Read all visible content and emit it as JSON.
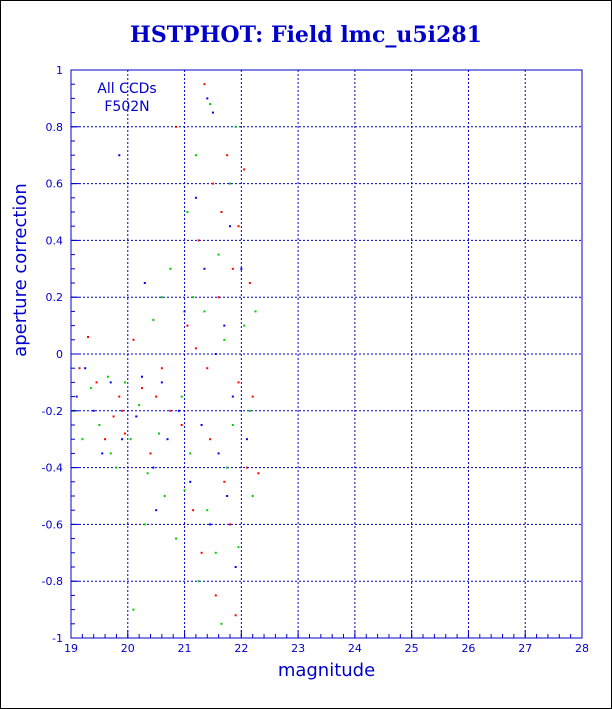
{
  "chart_data": {
    "type": "scatter",
    "title": "HSTPHOT: Field lmc_u5i281",
    "xlabel": "magnitude",
    "ylabel": "aperture correction",
    "xlim": [
      19,
      28
    ],
    "ylim": [
      -1,
      1
    ],
    "x_ticks": [
      "19",
      "20",
      "21",
      "22",
      "23",
      "24",
      "25",
      "26",
      "27",
      "28"
    ],
    "y_ticks": [
      "-1",
      "-0.8",
      "-0.6",
      "-0.4",
      "-0.2",
      "0",
      "0.2",
      "0.4",
      "0.6",
      "0.8",
      "1"
    ],
    "grid": true,
    "annotations": [
      "All CCDs",
      "F502N"
    ],
    "colors": {
      "axes": "#0000cc",
      "grid": "#0000cc",
      "title": "#0000cc"
    },
    "series": [
      {
        "color": "#ff0000",
        "points": [
          [
            19.15,
            -0.05
          ],
          [
            19.3,
            0.06
          ],
          [
            19.45,
            -0.1
          ],
          [
            19.6,
            -0.3
          ],
          [
            19.75,
            -0.22
          ],
          [
            19.85,
            -0.15
          ],
          [
            19.95,
            -0.28
          ],
          [
            20.1,
            0.05
          ],
          [
            20.25,
            -0.12
          ],
          [
            20.4,
            -0.35
          ],
          [
            20.6,
            -0.05
          ],
          [
            20.75,
            -0.2
          ],
          [
            20.85,
            0.8
          ],
          [
            20.95,
            -0.25
          ],
          [
            21.05,
            0.1
          ],
          [
            21.15,
            -0.55
          ],
          [
            21.25,
            0.4
          ],
          [
            21.3,
            -0.7
          ],
          [
            21.35,
            0.95
          ],
          [
            21.45,
            -0.3
          ],
          [
            21.5,
            0.6
          ],
          [
            21.55,
            -0.85
          ],
          [
            21.6,
            0.2
          ],
          [
            21.7,
            -0.45
          ],
          [
            21.75,
            0.7
          ],
          [
            21.8,
            -0.6
          ],
          [
            21.85,
            0.3
          ],
          [
            21.9,
            -0.92
          ],
          [
            21.95,
            -0.1
          ],
          [
            22.05,
            0.65
          ],
          [
            22.1,
            -0.4
          ],
          [
            22.15,
            0.25
          ],
          [
            22.2,
            -0.15
          ],
          [
            22.3,
            -0.42
          ],
          [
            21.4,
            -0.05
          ],
          [
            21.65,
            0.5
          ],
          [
            20.5,
            -0.15
          ],
          [
            19.9,
            -0.2
          ],
          [
            21.2,
            0.02
          ],
          [
            21.95,
            0.45
          ]
        ]
      },
      {
        "color": "#00cc00",
        "points": [
          [
            19.05,
            -0.2
          ],
          [
            19.2,
            -0.3
          ],
          [
            19.35,
            -0.12
          ],
          [
            19.5,
            -0.25
          ],
          [
            19.65,
            -0.08
          ],
          [
            19.8,
            -0.4
          ],
          [
            19.95,
            -0.1
          ],
          [
            20.05,
            -0.3
          ],
          [
            20.2,
            -0.18
          ],
          [
            20.35,
            -0.42
          ],
          [
            20.45,
            0.12
          ],
          [
            20.55,
            -0.28
          ],
          [
            20.65,
            -0.5
          ],
          [
            20.75,
            0.3
          ],
          [
            20.85,
            -0.65
          ],
          [
            20.95,
            -0.15
          ],
          [
            21.05,
            0.5
          ],
          [
            21.1,
            -0.35
          ],
          [
            21.2,
            0.7
          ],
          [
            21.25,
            -0.8
          ],
          [
            21.35,
            0.15
          ],
          [
            21.4,
            -0.55
          ],
          [
            21.45,
            0.88
          ],
          [
            21.55,
            -0.7
          ],
          [
            21.6,
            0.35
          ],
          [
            21.65,
            -0.95
          ],
          [
            21.7,
            0.05
          ],
          [
            21.75,
            -0.4
          ],
          [
            21.8,
            0.6
          ],
          [
            21.85,
            -0.25
          ],
          [
            21.9,
            0.8
          ],
          [
            21.95,
            -0.68
          ],
          [
            22.05,
            0.1
          ],
          [
            22.15,
            -0.2
          ],
          [
            22.25,
            0.15
          ],
          [
            22.2,
            -0.5
          ],
          [
            20.1,
            -0.9
          ],
          [
            20.3,
            -0.6
          ],
          [
            19.7,
            -0.35
          ],
          [
            21.0,
            -0.48
          ],
          [
            20.6,
            0.2
          ],
          [
            21.15,
            0.2
          ]
        ]
      },
      {
        "color": "#0000ff",
        "points": [
          [
            19.1,
            -0.15
          ],
          [
            19.25,
            -0.05
          ],
          [
            19.4,
            -0.2
          ],
          [
            19.55,
            -0.35
          ],
          [
            19.7,
            -0.1
          ],
          [
            19.85,
            0.7
          ],
          [
            19.9,
            -0.3
          ],
          [
            20.15,
            -0.22
          ],
          [
            20.3,
            0.25
          ],
          [
            20.45,
            -0.4
          ],
          [
            20.6,
            -0.1
          ],
          [
            20.7,
            -0.3
          ],
          [
            20.9,
            -0.2
          ],
          [
            21.0,
            0.15
          ],
          [
            21.1,
            -0.45
          ],
          [
            21.2,
            0.55
          ],
          [
            21.3,
            -0.25
          ],
          [
            21.4,
            0.9
          ],
          [
            21.45,
            -0.6
          ],
          [
            21.5,
            0.85
          ],
          [
            21.6,
            -0.35
          ],
          [
            21.7,
            0.1
          ],
          [
            21.75,
            -0.5
          ],
          [
            21.8,
            0.45
          ],
          [
            21.85,
            -0.15
          ],
          [
            21.9,
            -0.75
          ],
          [
            22.0,
            0.3
          ],
          [
            22.1,
            -0.3
          ],
          [
            20.5,
            -0.55
          ],
          [
            21.35,
            0.3
          ],
          [
            20.25,
            -0.08
          ],
          [
            21.55,
            0.0
          ]
        ]
      }
    ]
  }
}
